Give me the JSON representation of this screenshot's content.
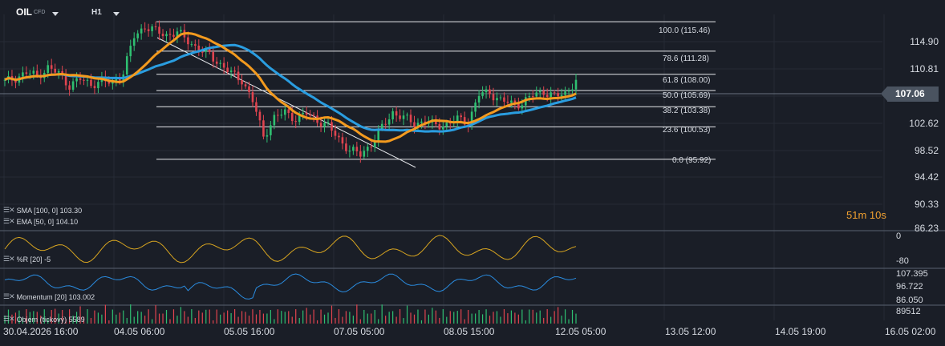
{
  "header": {
    "symbol": "OIL",
    "symbol_type": "CFD",
    "timeframe": "H1"
  },
  "price_axis": [
    "114.90",
    "110.81",
    "106.73",
    "102.62",
    "98.52",
    "94.42",
    "90.33",
    "86.23"
  ],
  "current_price": "107.06",
  "countdown": {
    "minutes": "51m",
    "seconds": "10s"
  },
  "fibonacci": [
    {
      "label": "100.0 (115.46)",
      "price": 115.46
    },
    {
      "label": "78.6 (111.28)",
      "price": 111.28
    },
    {
      "label": "61.8 (108.00)",
      "price": 108.0
    },
    {
      "label": "50.0 (105.69)",
      "price": 105.69
    },
    {
      "label": "38.2 (103.38)",
      "price": 103.38
    },
    {
      "label": "23.6 (100.53)",
      "price": 100.53
    },
    {
      "label": "0.0 (95.92)",
      "price": 95.92
    }
  ],
  "indicators": {
    "sma": "SMA [100, 0] 103.30",
    "ema": "EMA [50, 0] 104.10",
    "wr": "%R [20] -5",
    "momentum": "Momentum [20] 103.002",
    "volume": "Objem (tickový) 5589"
  },
  "wr_scale": [
    "0",
    "-80"
  ],
  "momentum_scale": [
    "107.395",
    "96.722",
    "86.050"
  ],
  "volume_scale": [
    "89512"
  ],
  "time_axis": [
    "30.04.2026 16:00",
    "04.05 06:00",
    "05.05 16:00",
    "07.05 05:00",
    "08.05 15:00",
    "12.05 05:00",
    "13.05 12:00",
    "14.05 19:00",
    "16.05 02:00"
  ],
  "colors": {
    "background": "#1a1e27",
    "up": "#2fbf71",
    "down": "#e0444f",
    "sma": "#2a9de0",
    "ema": "#f39a1e",
    "wr_line": "#d8a520",
    "momentum_line": "#2a8ce0"
  },
  "chart_data": {
    "type": "candlestick",
    "title": "OIL CFD H1",
    "ylim": [
      86.23,
      116.5
    ],
    "close_samples": [
      106.9,
      107.5,
      108.2,
      107.8,
      108.9,
      108.1,
      106.4,
      107.3,
      106.6,
      107.0,
      106.8,
      108.2,
      113.4,
      114.8,
      114.1,
      113.6,
      113.9,
      112.8,
      111.5,
      110.8,
      109.4,
      108.1,
      107.2,
      104.2,
      99.2,
      101.8,
      102.6,
      101.7,
      102.4,
      101.5,
      100.6,
      98.8,
      97.2,
      96.6,
      98.1,
      100.4,
      102.6,
      101.8,
      101.0,
      101.3,
      100.7,
      100.9,
      101.6,
      101.2,
      105.1,
      105.4,
      104.3,
      103.8,
      103.9,
      105.0,
      105.6,
      104.8,
      105.3,
      107.1
    ],
    "sma_last": 103.3,
    "ema_last": 104.1
  }
}
